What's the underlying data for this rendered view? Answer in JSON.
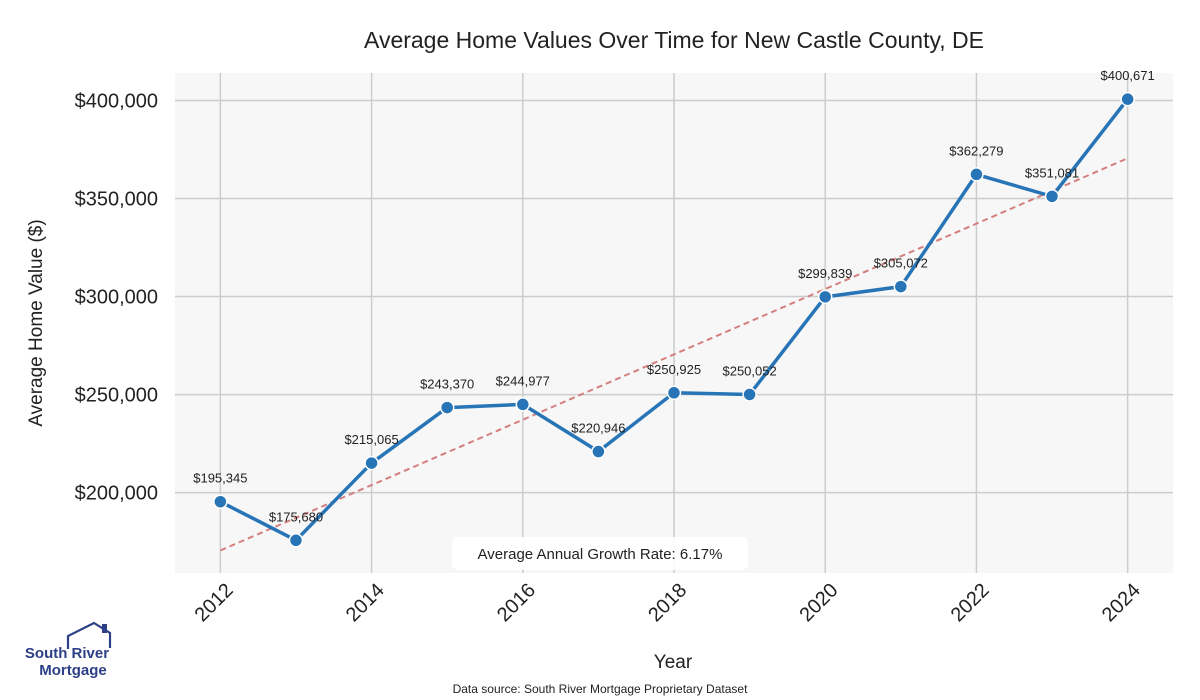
{
  "chart_data": {
    "type": "line",
    "title": "Average Home Values Over Time for New Castle County, DE",
    "xlabel": "Year",
    "ylabel": "Average Home Value ($)",
    "x": [
      2012,
      2013,
      2014,
      2015,
      2016,
      2017,
      2018,
      2019,
      2020,
      2021,
      2022,
      2023,
      2024
    ],
    "values": [
      195345,
      175680,
      215065,
      243370,
      244977,
      220946,
      250925,
      250052,
      299839,
      305072,
      362279,
      351081,
      400671
    ],
    "value_labels": [
      "$195,345",
      "$175,680",
      "$215,065",
      "$243,370",
      "$244,977",
      "$220,946",
      "$250,925",
      "$250,052",
      "$299,839",
      "$305,072",
      "$362,279",
      "$351,081",
      "$400,671"
    ],
    "x_ticks": [
      "2012",
      "2014",
      "2016",
      "2018",
      "2020",
      "2022",
      "2024"
    ],
    "y_ticks": [
      200000,
      250000,
      300000,
      350000,
      400000
    ],
    "y_tick_labels": [
      "$200,000",
      "$250,000",
      "$300,000",
      "$350,000",
      "$400,000"
    ],
    "xlim": [
      2011.4,
      2024.6
    ],
    "ylim": [
      159000,
      414000
    ],
    "trend_line": {
      "start": [
        2012,
        170500
      ],
      "end": [
        2024,
        370500
      ]
    },
    "annotation": "Average Annual Growth Rate: 6.17%",
    "grid": true,
    "colors": {
      "line": "#2775b6",
      "trend": "#d47f7f",
      "grid": "#cccccc",
      "background": "#f7f7f7"
    }
  },
  "source": "Data source: South River Mortgage Proprietary Dataset",
  "logo": {
    "line1": "South River",
    "line2": "Mortgage"
  }
}
